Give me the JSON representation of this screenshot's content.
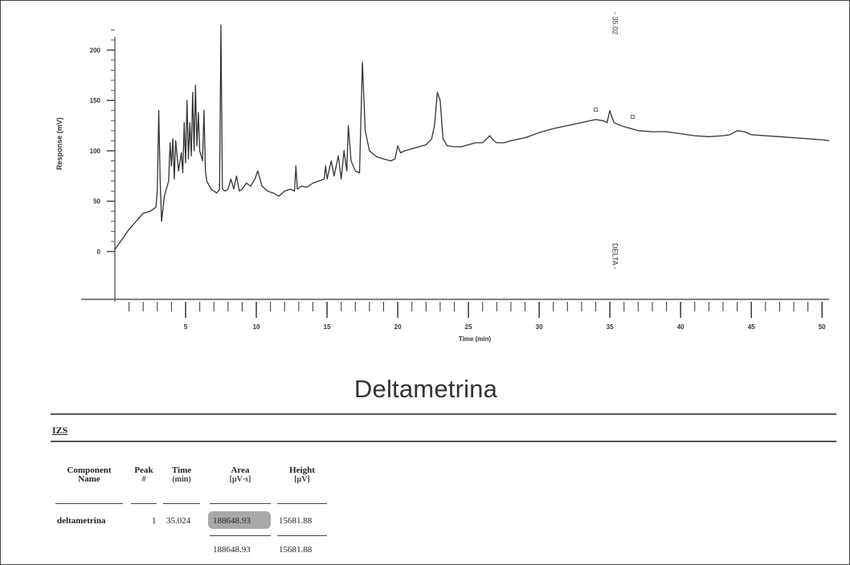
{
  "chart_data": {
    "type": "line",
    "title": "Deltametrina",
    "xlabel": "Time (min)",
    "ylabel": "Response (mV)",
    "xlim": [
      0,
      50.5
    ],
    "ylim": [
      -10,
      225
    ],
    "xticks": [
      5,
      10,
      15,
      20,
      25,
      30,
      35,
      40,
      45,
      50
    ],
    "yticks": [
      0,
      50,
      100,
      150,
      200
    ],
    "grid": false,
    "series": [
      {
        "values": [
          [
            0.0,
            2
          ],
          [
            0.5,
            12
          ],
          [
            1.0,
            22
          ],
          [
            1.5,
            30
          ],
          [
            2.0,
            38
          ],
          [
            2.5,
            40
          ],
          [
            2.9,
            44
          ],
          [
            3.0,
            60
          ],
          [
            3.1,
            140
          ],
          [
            3.2,
            72
          ],
          [
            3.3,
            30
          ],
          [
            3.5,
            55
          ],
          [
            3.8,
            70
          ],
          [
            3.9,
            108
          ],
          [
            4.0,
            85
          ],
          [
            4.1,
            112
          ],
          [
            4.2,
            72
          ],
          [
            4.3,
            110
          ],
          [
            4.5,
            80
          ],
          [
            4.7,
            98
          ],
          [
            4.8,
            78
          ],
          [
            4.9,
            128
          ],
          [
            5.0,
            88
          ],
          [
            5.1,
            150
          ],
          [
            5.2,
            92
          ],
          [
            5.3,
            128
          ],
          [
            5.4,
            95
          ],
          [
            5.5,
            158
          ],
          [
            5.6,
            100
          ],
          [
            5.7,
            165
          ],
          [
            5.8,
            105
          ],
          [
            5.9,
            138
          ],
          [
            6.0,
            100
          ],
          [
            6.2,
            90
          ],
          [
            6.3,
            140
          ],
          [
            6.4,
            80
          ],
          [
            6.5,
            70
          ],
          [
            6.8,
            62
          ],
          [
            7.0,
            60
          ],
          [
            7.2,
            58
          ],
          [
            7.4,
            62
          ],
          [
            7.5,
            225
          ],
          [
            7.6,
            62
          ],
          [
            7.8,
            60
          ],
          [
            8.0,
            62
          ],
          [
            8.2,
            72
          ],
          [
            8.4,
            62
          ],
          [
            8.6,
            75
          ],
          [
            8.8,
            60
          ],
          [
            9.0,
            62
          ],
          [
            9.3,
            68
          ],
          [
            9.6,
            65
          ],
          [
            9.9,
            72
          ],
          [
            10.1,
            80
          ],
          [
            10.4,
            65
          ],
          [
            10.8,
            60
          ],
          [
            11.2,
            58
          ],
          [
            11.6,
            55
          ],
          [
            12.0,
            60
          ],
          [
            12.4,
            62
          ],
          [
            12.7,
            60
          ],
          [
            12.8,
            85
          ],
          [
            12.9,
            62
          ],
          [
            13.2,
            65
          ],
          [
            13.6,
            64
          ],
          [
            14.0,
            68
          ],
          [
            14.4,
            70
          ],
          [
            14.8,
            72
          ],
          [
            14.9,
            85
          ],
          [
            15.0,
            72
          ],
          [
            15.3,
            90
          ],
          [
            15.5,
            75
          ],
          [
            15.8,
            95
          ],
          [
            16.0,
            72
          ],
          [
            16.2,
            100
          ],
          [
            16.4,
            80
          ],
          [
            16.5,
            125
          ],
          [
            16.7,
            90
          ],
          [
            17.0,
            80
          ],
          [
            17.3,
            78
          ],
          [
            17.5,
            188
          ],
          [
            17.7,
            120
          ],
          [
            18.0,
            100
          ],
          [
            18.5,
            94
          ],
          [
            19.0,
            92
          ],
          [
            19.5,
            90
          ],
          [
            19.8,
            92
          ],
          [
            20.0,
            105
          ],
          [
            20.2,
            98
          ],
          [
            20.5,
            100
          ],
          [
            21.0,
            102
          ],
          [
            21.5,
            104
          ],
          [
            22.0,
            106
          ],
          [
            22.4,
            112
          ],
          [
            22.6,
            125
          ],
          [
            22.8,
            158
          ],
          [
            23.0,
            150
          ],
          [
            23.2,
            112
          ],
          [
            23.5,
            105
          ],
          [
            24.0,
            104
          ],
          [
            24.5,
            104
          ],
          [
            25.0,
            106
          ],
          [
            25.5,
            108
          ],
          [
            26.0,
            108
          ],
          [
            26.3,
            112
          ],
          [
            26.5,
            115
          ],
          [
            26.8,
            110
          ],
          [
            27.0,
            108
          ],
          [
            27.5,
            108
          ],
          [
            28.0,
            110
          ],
          [
            29.0,
            113
          ],
          [
            30.0,
            118
          ],
          [
            31.0,
            122
          ],
          [
            32.0,
            125
          ],
          [
            33.0,
            128
          ],
          [
            34.0,
            131
          ],
          [
            34.5,
            130
          ],
          [
            34.8,
            128
          ],
          [
            35.0,
            140
          ],
          [
            35.1,
            135
          ],
          [
            35.3,
            128
          ],
          [
            35.6,
            126
          ],
          [
            36.0,
            124
          ],
          [
            36.5,
            122
          ],
          [
            37.0,
            120
          ],
          [
            38.0,
            119
          ],
          [
            39.0,
            119
          ],
          [
            40.0,
            117
          ],
          [
            41.0,
            115
          ],
          [
            42.0,
            114
          ],
          [
            43.0,
            115
          ],
          [
            43.5,
            116
          ],
          [
            44.0,
            120
          ],
          [
            44.5,
            119
          ],
          [
            45.0,
            116
          ],
          [
            46.0,
            115
          ],
          [
            47.0,
            114
          ],
          [
            48.0,
            113
          ],
          [
            49.0,
            112
          ],
          [
            50.0,
            111
          ],
          [
            50.5,
            110
          ]
        ]
      }
    ],
    "annotations": [
      {
        "text": "- 35.02",
        "x": 35.02
      },
      {
        "text": "DELTA -",
        "x": 35.02
      }
    ]
  },
  "chart_labels": {
    "title": "Deltametrina",
    "xlabel": "Time (min)",
    "ylabel": "Response (mV)",
    "peak_time": "- 35.02",
    "peak_name": "DELTA -",
    "tick_x": [
      "5",
      "10",
      "15",
      "20",
      "25",
      "30",
      "35",
      "40",
      "45",
      "50"
    ],
    "tick_y": [
      "0",
      "50",
      "100",
      "150",
      "200"
    ]
  },
  "report": {
    "lab": "IZS",
    "table": {
      "headers": {
        "component": [
          "Component",
          "Name"
        ],
        "peak": [
          "Peak",
          "#"
        ],
        "time": [
          "Time",
          "(min)"
        ],
        "area": [
          "Area",
          "[μV·s]"
        ],
        "height": [
          "Height",
          "[μV]"
        ]
      },
      "row": {
        "name": "deltametrina",
        "peak": "1",
        "time": "35.024",
        "area": "188648.93",
        "height": "15681.88"
      },
      "totals": {
        "area": "188648.93",
        "height": "15681.88"
      }
    }
  },
  "colors": {
    "trace": "#333333",
    "highlight": "#a9a9a9"
  }
}
